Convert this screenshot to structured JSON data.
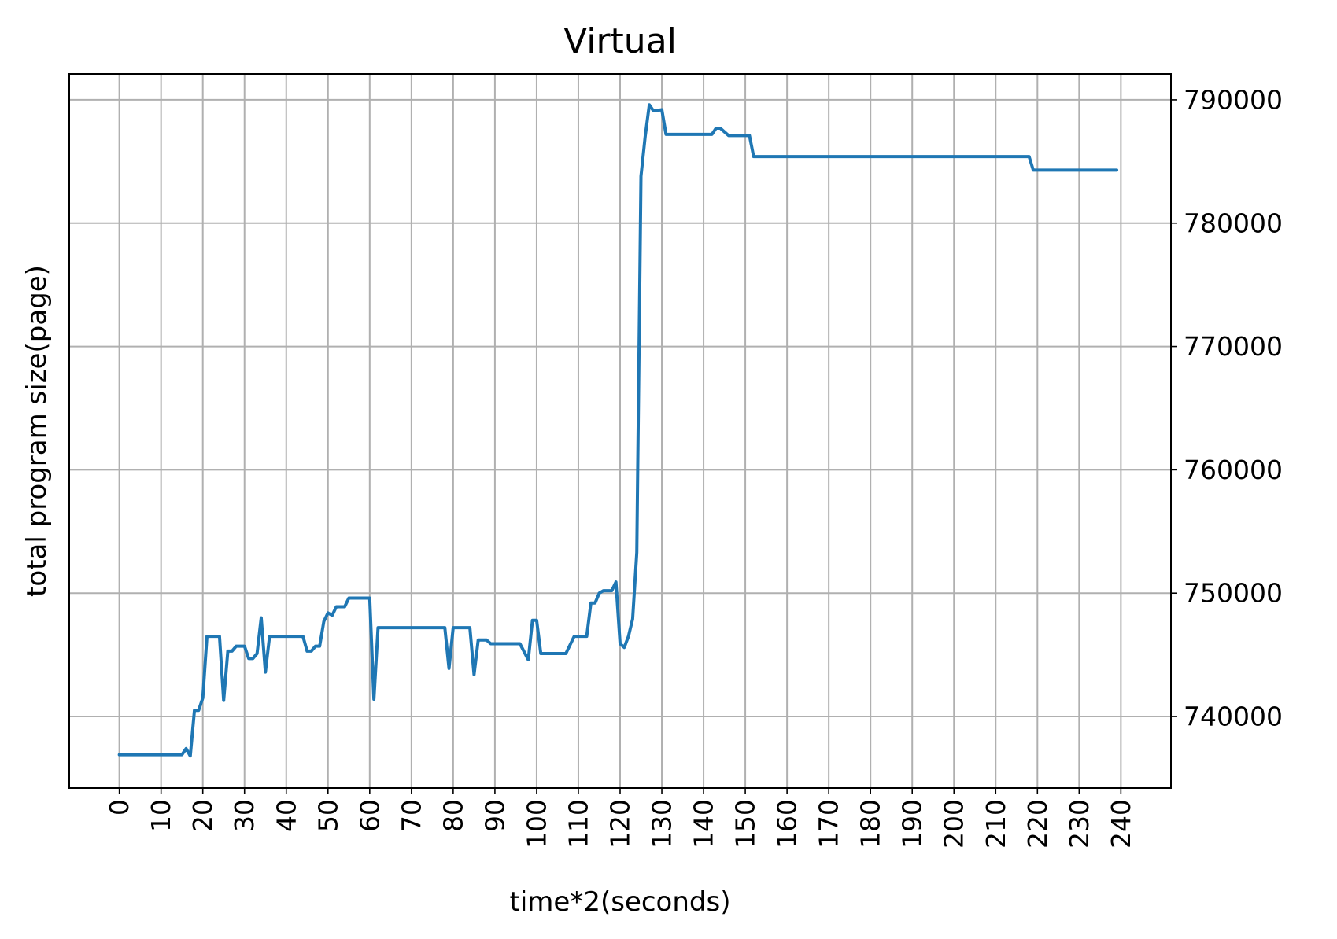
{
  "chart_data": {
    "type": "line",
    "title": "Virtual",
    "xlabel": "time*2(seconds)",
    "ylabel": "total program size(page)",
    "xlim": [
      -12,
      252
    ],
    "ylim": [
      734200,
      792100
    ],
    "x_ticks": [
      0,
      10,
      20,
      30,
      40,
      50,
      60,
      70,
      80,
      90,
      100,
      110,
      120,
      130,
      140,
      150,
      160,
      170,
      180,
      190,
      200,
      210,
      220,
      230,
      240
    ],
    "y_ticks": [
      740000,
      750000,
      760000,
      770000,
      780000,
      790000
    ],
    "y_axis_side": "right",
    "x_tick_rotation": "vertical",
    "grid": true,
    "legend": "none",
    "series": [
      {
        "color": "#1f77b4",
        "points": [
          [
            0,
            736900
          ],
          [
            15,
            736900
          ],
          [
            16,
            737400
          ],
          [
            17,
            736800
          ],
          [
            18,
            740500
          ],
          [
            19,
            740500
          ],
          [
            20,
            741500
          ],
          [
            21,
            746500
          ],
          [
            22,
            746500
          ],
          [
            24,
            746500
          ],
          [
            25,
            741300
          ],
          [
            26,
            745300
          ],
          [
            27,
            745300
          ],
          [
            28,
            745700
          ],
          [
            30,
            745700
          ],
          [
            31,
            744700
          ],
          [
            32,
            744700
          ],
          [
            33,
            745100
          ],
          [
            34,
            748000
          ],
          [
            35,
            743600
          ],
          [
            36,
            746500
          ],
          [
            44,
            746500
          ],
          [
            45,
            745300
          ],
          [
            46,
            745300
          ],
          [
            47,
            745700
          ],
          [
            48,
            745700
          ],
          [
            49,
            747700
          ],
          [
            50,
            748400
          ],
          [
            51,
            748200
          ],
          [
            52,
            748900
          ],
          [
            54,
            748900
          ],
          [
            55,
            749600
          ],
          [
            60,
            749600
          ],
          [
            61,
            741400
          ],
          [
            62,
            747200
          ],
          [
            78,
            747200
          ],
          [
            79,
            743900
          ],
          [
            80,
            747200
          ],
          [
            84,
            747200
          ],
          [
            85,
            743400
          ],
          [
            86,
            746200
          ],
          [
            88,
            746200
          ],
          [
            89,
            745900
          ],
          [
            96,
            745900
          ],
          [
            98,
            744600
          ],
          [
            99,
            747800
          ],
          [
            100,
            747800
          ],
          [
            101,
            745100
          ],
          [
            107,
            745100
          ],
          [
            109,
            746500
          ],
          [
            112,
            746500
          ],
          [
            113,
            749200
          ],
          [
            114,
            749200
          ],
          [
            115,
            750000
          ],
          [
            116,
            750200
          ],
          [
            118,
            750200
          ],
          [
            119,
            750900
          ],
          [
            120,
            745900
          ],
          [
            121,
            745600
          ],
          [
            122,
            746500
          ],
          [
            123,
            747900
          ],
          [
            124,
            753300
          ],
          [
            125,
            783800
          ],
          [
            126,
            787000
          ],
          [
            127,
            789600
          ],
          [
            128,
            789100
          ],
          [
            130,
            789200
          ],
          [
            131,
            787200
          ],
          [
            142,
            787200
          ],
          [
            143,
            787700
          ],
          [
            144,
            787700
          ],
          [
            146,
            787100
          ],
          [
            151,
            787100
          ],
          [
            152,
            785400
          ],
          [
            218,
            785400
          ],
          [
            219,
            784300
          ],
          [
            239,
            784300
          ]
        ]
      }
    ]
  }
}
